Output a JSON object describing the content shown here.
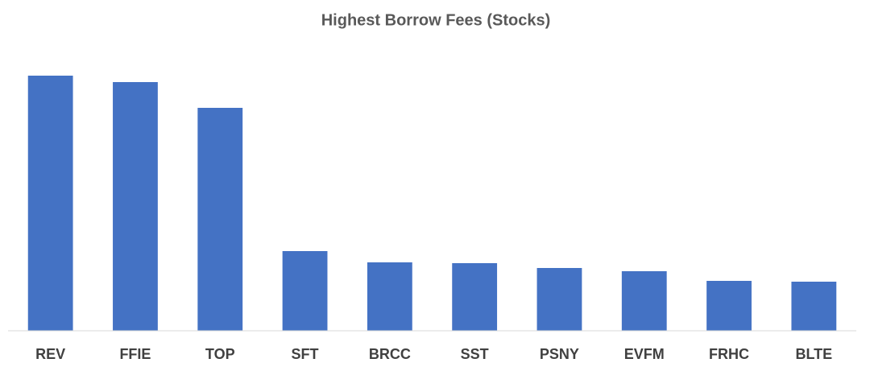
{
  "chart_data": {
    "type": "bar",
    "title": "Highest Borrow Fees (Stocks)",
    "categories": [
      "REV",
      "FFIE",
      "TOP",
      "SFT",
      "BRCC",
      "SST",
      "PSNY",
      "EVFM",
      "FRHC",
      "BLTE"
    ],
    "values": [
      317,
      309,
      277,
      99,
      85,
      84,
      78,
      74,
      62,
      61
    ],
    "color": "#4472c4",
    "ylim": [
      0,
      340
    ]
  }
}
